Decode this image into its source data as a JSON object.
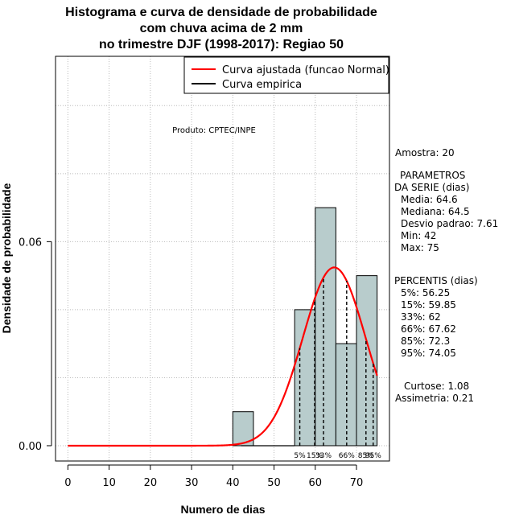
{
  "title_lines": [
    "Histograma e curva de densidade de probabilidade",
    "com chuva acima de 2 mm",
    "no trimestre DJF (1998-2017): Regiao 50"
  ],
  "colors": {
    "bar_fill": "#b8cccc",
    "fitted_curve": "#ff0000",
    "empirical_curve": "#000000",
    "grid": "#bbbbbb"
  },
  "chart_data": {
    "type": "bar",
    "title": "Histograma e curva de densidade de probabilidade com chuva acima de 2 mm no trimestre DJF (1998-2017): Regiao 50",
    "xlabel": "Numero de dias",
    "ylabel": "Densidade de probabilidade",
    "xlim": [
      -3,
      78
    ],
    "ylim": [
      -0.0045,
      0.1145
    ],
    "x_ticks": [
      0,
      10,
      20,
      30,
      40,
      50,
      60,
      70
    ],
    "y_ticks": [
      0.0,
      0.06
    ],
    "y_tick_labels": [
      "0.00",
      "0.06"
    ],
    "grid": true,
    "bins": [
      {
        "from": 40,
        "to": 45,
        "density": 0.01
      },
      {
        "from": 55,
        "to": 60,
        "density": 0.04
      },
      {
        "from": 60,
        "to": 65,
        "density": 0.07
      },
      {
        "from": 65,
        "to": 70,
        "density": 0.03
      },
      {
        "from": 70,
        "to": 75,
        "density": 0.05
      }
    ],
    "fitted_normal": {
      "name": "Curva ajustada (funcao Normal)",
      "mean": 64.6,
      "sd": 7.61,
      "from": 0,
      "to": 75
    },
    "empirical_curve": {
      "name": "Curva empirica"
    },
    "legend": {
      "position": "top-right",
      "entries": [
        {
          "label": "Curva ajustada (funcao Normal)",
          "color": "#ff0000"
        },
        {
          "label": "Curva empirica",
          "color": "#000000"
        }
      ]
    },
    "annotation": "Produto: CPTEC/INPE",
    "percentile_lines": [
      {
        "label": "5%",
        "value": 56.25
      },
      {
        "label": "15%",
        "value": 59.85
      },
      {
        "label": "33%",
        "value": 62
      },
      {
        "label": "66%",
        "value": 67.62
      },
      {
        "label": "85%",
        "value": 72.3
      },
      {
        "label": "95%",
        "value": 74.05
      }
    ]
  },
  "stats": {
    "amostra": "Amostra: 20",
    "params_header_1": "PARAMETROS",
    "params_header_2": "DA SERIE (dias)",
    "params": [
      "Media: 64.6",
      "Mediana: 64.5",
      "Desvio padrao: 7.61",
      "Min: 42",
      "Max: 75"
    ],
    "percentis_header": "PERCENTIS (dias)",
    "percentis": [
      "5%: 56.25",
      "15%: 59.85",
      "33%: 62",
      "66%: 67.62",
      "85%: 72.3",
      "95%: 74.05"
    ],
    "curtose": "Curtose: 1.08",
    "assimetria": "Assimetria: 0.21"
  }
}
